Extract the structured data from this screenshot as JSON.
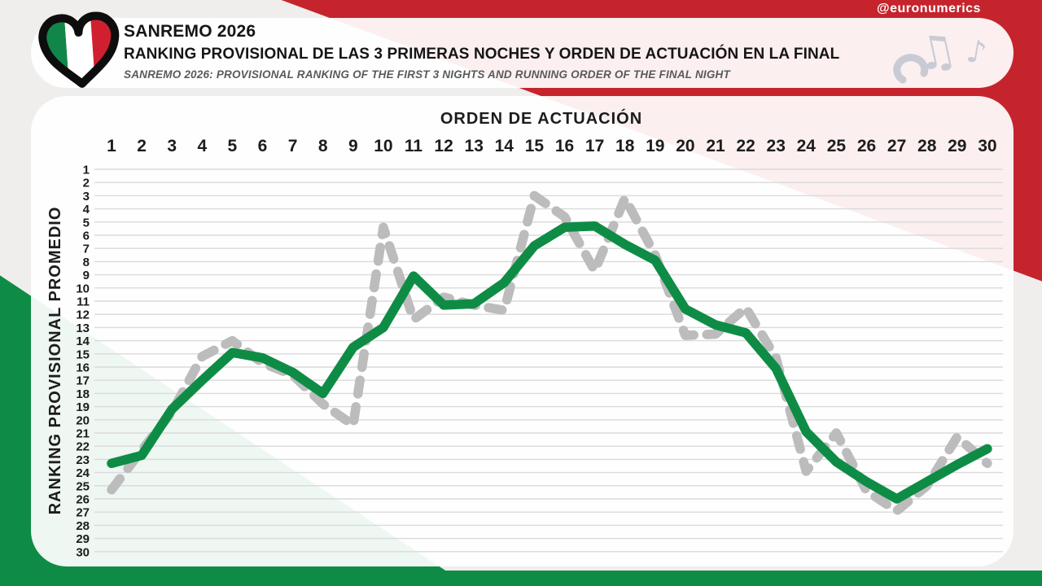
{
  "page": {
    "handle": "@euronumerics"
  },
  "header": {
    "title": "SANREMO 2026",
    "subtitle": "RANKING PROVISIONAL DE LAS 3 PRIMERAS NOCHES Y ORDEN DE ACTUACIÓN EN LA FINAL",
    "subtitle_en": "SANREMO 2026: PROVISIONAL RANKING OF THE FIRST 3 NIGHTS AND RUNNING ORDER OF THE FINAL NIGHT",
    "logo": "eurovision-heart-italian-flag",
    "decoration": "music-notes"
  },
  "chart_data": {
    "type": "line",
    "title": "",
    "xlabel": "ORDEN DE ACTUACIÓN",
    "ylabel": "RANKING PROVISIONAL PROMEDIO",
    "x": [
      1,
      2,
      3,
      4,
      5,
      6,
      7,
      8,
      9,
      10,
      11,
      12,
      13,
      14,
      15,
      16,
      17,
      18,
      19,
      20,
      21,
      22,
      23,
      24,
      25,
      26,
      27,
      28,
      29,
      30
    ],
    "xticks": [
      "1",
      "2",
      "3",
      "4",
      "5",
      "6",
      "7",
      "8",
      "9",
      "10",
      "11",
      "12",
      "13",
      "14",
      "15",
      "16",
      "17",
      "18",
      "19",
      "20",
      "21",
      "22",
      "23",
      "24",
      "25",
      "26",
      "27",
      "28",
      "29",
      "30"
    ],
    "yticks": [
      "1",
      "2",
      "3",
      "4",
      "5",
      "6",
      "7",
      "8",
      "9",
      "10",
      "11",
      "12",
      "13",
      "14",
      "15",
      "16",
      "17",
      "18",
      "19",
      "20",
      "21",
      "22",
      "23",
      "24",
      "25",
      "26",
      "27",
      "28",
      "29",
      "30"
    ],
    "xlim": [
      1,
      30
    ],
    "ylim": [
      1,
      30
    ],
    "y_axis_inverted": true,
    "grid": true,
    "legend": "none",
    "series": [
      {
        "name": "gray-dashed-line",
        "style": "dashed",
        "color": "#bcbcbc",
        "values": [
          25.3,
          22.3,
          19.4,
          15.2,
          14.0,
          15.7,
          16.6,
          18.8,
          20.4,
          5.4,
          12.4,
          10.7,
          11.3,
          11.7,
          3.0,
          4.6,
          8.7,
          3.2,
          7.5,
          13.6,
          13.5,
          11.5,
          15.3,
          23.9,
          21.0,
          25.4,
          26.9,
          25.0,
          21.3,
          23.3
        ]
      },
      {
        "name": "green-solid-line",
        "style": "solid",
        "color": "#0e8c46",
        "values": [
          23.3,
          22.7,
          19.2,
          17.0,
          14.9,
          15.3,
          16.4,
          18.0,
          14.5,
          13.0,
          9.1,
          11.3,
          11.2,
          9.6,
          6.8,
          5.4,
          5.3,
          6.7,
          7.9,
          11.6,
          12.8,
          13.4,
          16.1,
          20.9,
          23.2,
          24.7,
          26.0,
          24.7,
          23.4,
          22.2
        ]
      }
    ]
  },
  "colors": {
    "background": "#f0eded",
    "red": "#c5242c",
    "green": "#0e8c46",
    "flag_green": "#108748",
    "flag_white": "#ffffff",
    "flag_red": "#d02030",
    "card": "rgba(255,255,255,0.93)",
    "grid": "#dadada",
    "gray_line": "#bcbcbc",
    "text": "#1c1c1c",
    "muted_text": "#5a5a5a",
    "decoration": "#c9cbd4"
  }
}
